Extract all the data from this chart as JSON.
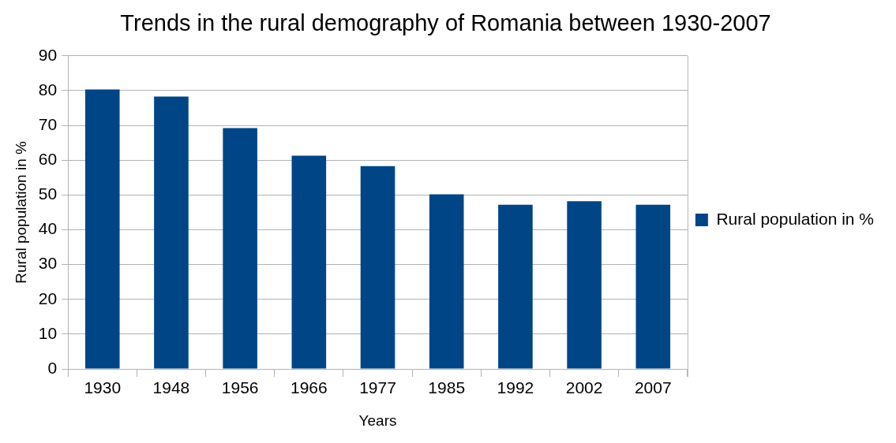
{
  "chart_data": {
    "type": "bar",
    "title": "Trends in the rural demography of Romania between 1930-2007",
    "xlabel": "Years",
    "ylabel": "Rural population in %",
    "categories": [
      "1930",
      "1948",
      "1956",
      "1966",
      "1977",
      "1985",
      "1992",
      "2002",
      "2007"
    ],
    "series": [
      {
        "name": "Rural population in %",
        "color": "#004586",
        "values": [
          80.3,
          78.3,
          69.2,
          61.3,
          58.3,
          50.2,
          47.2,
          48.2,
          47.2
        ]
      }
    ],
    "ylim": [
      0,
      90
    ],
    "yticks": [
      0,
      10,
      20,
      30,
      40,
      50,
      60,
      70,
      80,
      90
    ],
    "grid": "y",
    "legend": "right"
  }
}
